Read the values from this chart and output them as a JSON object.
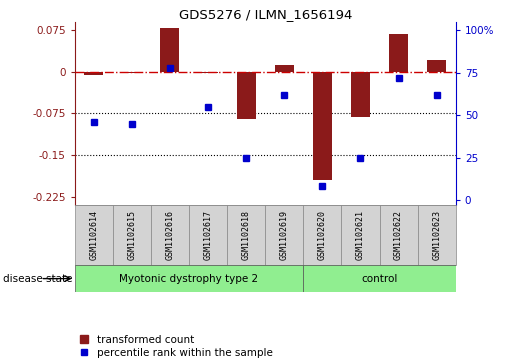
{
  "title": "GDS5276 / ILMN_1656194",
  "samples": [
    "GSM1102614",
    "GSM1102615",
    "GSM1102616",
    "GSM1102617",
    "GSM1102618",
    "GSM1102619",
    "GSM1102620",
    "GSM1102621",
    "GSM1102622",
    "GSM1102623"
  ],
  "red_bars": [
    -0.005,
    -0.003,
    0.078,
    -0.002,
    -0.085,
    0.012,
    -0.195,
    -0.082,
    0.068,
    0.022
  ],
  "blue_dots": [
    46,
    45,
    78,
    55,
    25,
    62,
    8,
    25,
    72,
    62
  ],
  "ylim_left": [
    -0.24,
    0.09
  ],
  "ylim_right": [
    -3.0,
    105
  ],
  "yticks_left": [
    0.075,
    0,
    -0.075,
    -0.15,
    -0.225
  ],
  "yticks_right": [
    100,
    75,
    50,
    25,
    0
  ],
  "group1_label": "Myotonic dystrophy type 2",
  "group2_label": "control",
  "group1_count": 6,
  "group2_count": 4,
  "bar_color": "#8B1A1A",
  "dot_color": "#0000CC",
  "group1_bg": "#90EE90",
  "group2_bg": "#90EE90",
  "sample_bg": "#D3D3D3",
  "disease_label": "disease state",
  "legend1": "transformed count",
  "legend2": "percentile rank within the sample",
  "zero_line_color": "#CC0000",
  "dotted_line_color": "#000000"
}
